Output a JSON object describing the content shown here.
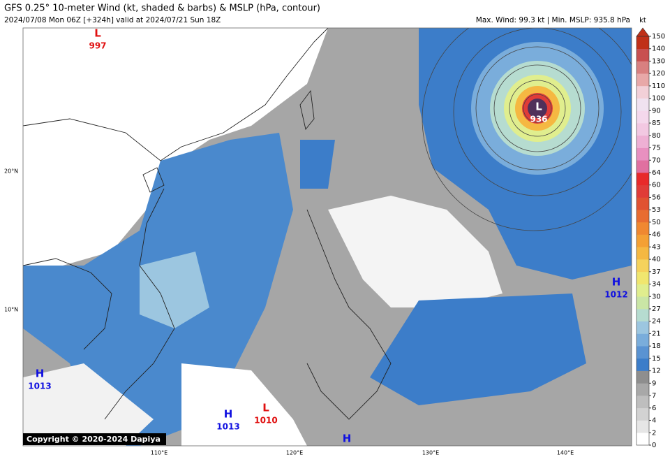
{
  "header": {
    "title": "GFS 0.25° 10-meter Wind (kt, shaded & barbs) & MSLP (hPa, contour)",
    "subtitle": "2024/07/08 Mon 06Z [+324h] valid at 2024/07/21 Sun 18Z",
    "stats": "Max. Wind: 99.3 kt | Min. MSLP: 935.8 hPa"
  },
  "map": {
    "lat_labels": [
      "20°N",
      "10°N"
    ],
    "lon_labels": [
      "110°E",
      "120°E",
      "130°E",
      "140°E"
    ],
    "systems": [
      {
        "letter": "L",
        "value": 997
      },
      {
        "letter": "L",
        "value": 936
      },
      {
        "letter": "H",
        "value": 1012
      },
      {
        "letter": "H",
        "value": 1013
      },
      {
        "letter": "H",
        "value": 1013
      },
      {
        "letter": "L",
        "value": 1010
      },
      {
        "letter": "H"
      }
    ],
    "copyright": "Copyright © 2020-2024 Dapiya"
  },
  "colorbar": {
    "unit": "kt",
    "ticks": [
      0,
      2,
      4,
      6,
      7,
      9,
      12,
      15,
      18,
      21,
      24,
      27,
      30,
      34,
      37,
      40,
      43,
      46,
      50,
      53,
      56,
      60,
      64,
      70,
      75,
      80,
      85,
      90,
      100,
      110,
      120,
      130,
      140,
      150
    ],
    "colors": [
      "#ffffff",
      "#e6e6e6",
      "#d2d2d2",
      "#bebebe",
      "#a8a8a8",
      "#8e8e8e",
      "#3c7dc9",
      "#5a93d2",
      "#7aaddb",
      "#9cc6e0",
      "#b6dcd0",
      "#cae6a6",
      "#e0ee8e",
      "#f0e66e",
      "#f5d25c",
      "#f5b842",
      "#f4a034",
      "#f08830",
      "#e86c30",
      "#e05232",
      "#e03c38",
      "#e82a2a",
      "#e070a0",
      "#e890c0",
      "#eeb0d4",
      "#f2c8e2",
      "#f4d8ec",
      "#f0e2f0",
      "#f2d0d8",
      "#e8a8a8",
      "#d88080",
      "#c85050",
      "#c03018"
    ]
  }
}
